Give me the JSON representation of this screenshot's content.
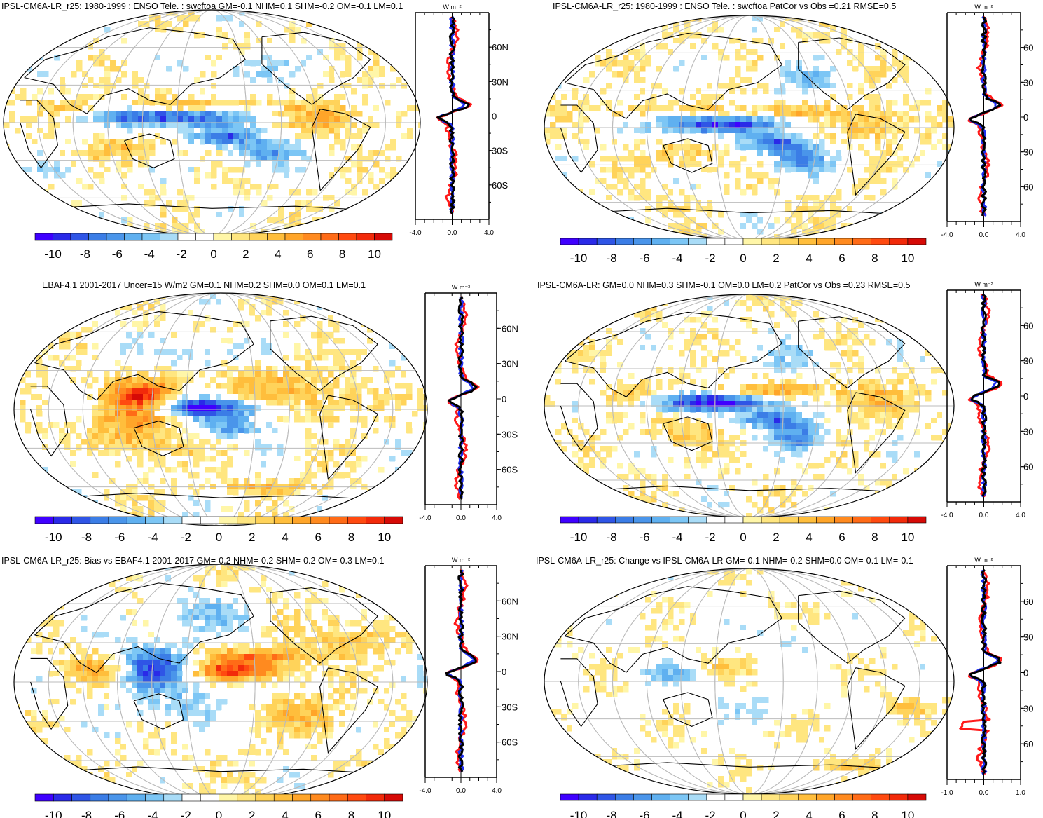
{
  "colorbar": {
    "colors": [
      "#3f00ff",
      "#2a2ae8",
      "#2f55e6",
      "#3b7de6",
      "#4a95ea",
      "#5fb0f0",
      "#7cc6f5",
      "#a9dcf7",
      "#ffffff",
      "#ffffff",
      "#fff6a8",
      "#ffe680",
      "#ffd35a",
      "#ffbe3c",
      "#ffa529",
      "#ff8a1f",
      "#ff6b17",
      "#ff4a10",
      "#f22a0a",
      "#d60a06"
    ],
    "tick_labels": [
      "-10",
      "-8",
      "-6",
      "-4",
      "-2",
      "0",
      "2",
      "4",
      "6",
      "8",
      "10"
    ]
  },
  "profile_colors": {
    "model": "#1f2ff0",
    "obs": "#ff1a1a",
    "diff": "#000000"
  },
  "panels": [
    {
      "title": "IPSL-CM6A-LR_r25: 1980-1999 : ENSO Tele. : swcftoa GM=-0.1 NHM=0.1 SHM=-0.2 OM=-0.1 LM=0.1",
      "units": "W m⁻²",
      "lat_labels": [
        "60N",
        "30N",
        "0",
        "30S",
        "60S"
      ],
      "x_labels": [
        "-4.0",
        "0.0",
        "4.0"
      ]
    },
    {
      "title": "IPSL-CM6A-LR_r25: 1980-1999 : ENSO Tele. : swcftoa PatCor vs Obs =0.21 RMSE=0.5",
      "units": "W m⁻²",
      "lat_labels": [
        "60",
        "30",
        "0",
        "30",
        "60"
      ],
      "x_labels": [
        "-4.0",
        "0.0",
        "4.0"
      ]
    },
    {
      "title": "EBAF4.1 2001-2017 Uncer=15 W/m2 GM=0.1 NHM=0.2 SHM=0.0 OM=0.1 LM=0.1",
      "units": "W m⁻²",
      "lat_labels": [
        "60N",
        "30N",
        "0",
        "30S",
        "60S"
      ],
      "x_labels": [
        "-4.0",
        "0.0",
        "4.0"
      ]
    },
    {
      "title": "IPSL-CM6A-LR: GM=0.0 NHM=0.3 SHM=-0.1 OM=0.0 LM=0.2 PatCor vs Obs =0.23 RMSE=0.5",
      "units": "W m⁻²",
      "lat_labels": [
        "60",
        "30",
        "0",
        "30",
        "60"
      ],
      "x_labels": [
        "-4.0",
        "0.0",
        "4.0"
      ]
    },
    {
      "title": "IPSL-CM6A-LR_r25: Bias vs EBAF4.1 2001-2017 GM=-0.2 NHM=-0.2 SHM=-0.2 OM=-0.3 LM=0.1",
      "units": "W m⁻²",
      "lat_labels": [
        "60N",
        "30N",
        "0",
        "30S",
        "60S"
      ],
      "x_labels": [
        "-4.0",
        "0.0",
        "4.0"
      ]
    },
    {
      "title": "IPSL-CM6A-LR_r25: Change vs IPSL-CM6A-LR GM=-0.1 NHM=-0.2 SHM=0.0 OM=-0.1 LM=-0.1",
      "units": "W m⁻²",
      "lat_labels": [
        "60",
        "30",
        "0",
        "30",
        "60"
      ],
      "x_labels": [
        "-1.0",
        "0.0",
        "1.0"
      ]
    }
  ]
}
